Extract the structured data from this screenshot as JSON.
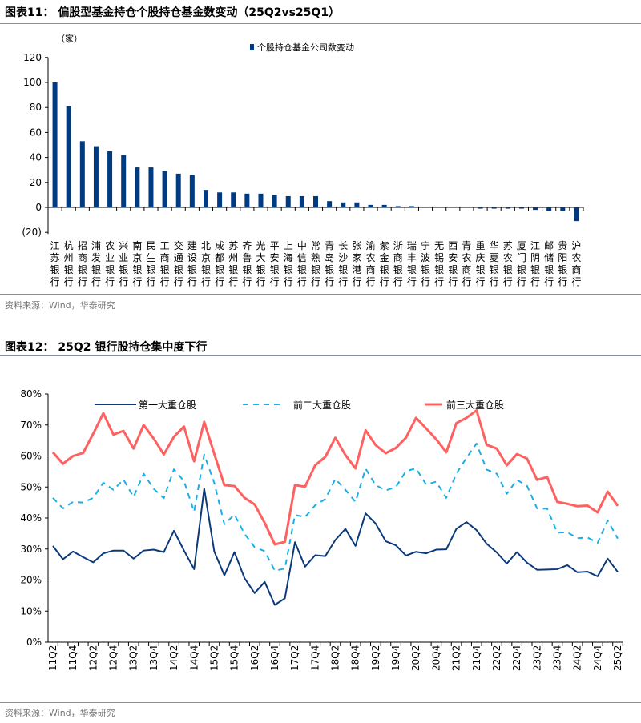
{
  "chart_data": [
    {
      "type": "bar",
      "title": "图表11： 偏股型基金持仓个股持仓基金数变动（25Q2vs25Q1）",
      "ylabel": "（家）",
      "ylim": [
        -20,
        120
      ],
      "yticks": [
        "(20)",
        "0",
        "20",
        "40",
        "60",
        "80",
        "100",
        "120"
      ],
      "legend": "top-center",
      "color": "#003A80",
      "categories": [
        "江苏银行",
        "杭州银行",
        "招商银行",
        "浦发银行",
        "农业银行",
        "兴业银行",
        "南京银行",
        "民生银行",
        "工商银行",
        "交通银行",
        "建设银行",
        "北京银行",
        "成都银行",
        "苏州银行",
        "齐鲁银行",
        "光大银行",
        "平安银行",
        "上海银行",
        "中信银行",
        "常熟银行",
        "青岛银行",
        "长沙银行",
        "张家港行",
        "渝农商行",
        "紫金银行",
        "浙商银行",
        "瑞丰银行",
        "宁波银行",
        "无锡银行",
        "西安银行",
        "青农商行",
        "重庆银行",
        "华夏银行",
        "苏农银行",
        "厦门银行",
        "江阴银行",
        "邮储银行",
        "贵阳银行",
        "沪农商行"
      ],
      "series": [
        {
          "name": "个股持仓基金公司数变动",
          "values": [
            100,
            81,
            53,
            49,
            45,
            42,
            32,
            32,
            29,
            27,
            26,
            14,
            12,
            12,
            11,
            11,
            10,
            9,
            9,
            9,
            5,
            4,
            4,
            2,
            2,
            1,
            1,
            0,
            0,
            0,
            0,
            -1,
            -1,
            -1,
            -1,
            -2,
            -3,
            -3,
            -11
          ]
        }
      ],
      "source": "资料来源：Wind，华泰研究"
    },
    {
      "type": "line",
      "title": "图表12： 25Q2 银行股持仓集中度下行",
      "ylim": [
        0,
        80
      ],
      "yticks": [
        "0%",
        "10%",
        "20%",
        "30%",
        "40%",
        "50%",
        "60%",
        "70%",
        "80%"
      ],
      "legend": "top",
      "x": [
        "11Q2",
        "11Q3",
        "11Q4",
        "12Q1",
        "12Q2",
        "12Q3",
        "12Q4",
        "13Q1",
        "13Q2",
        "13Q3",
        "13Q4",
        "14Q1",
        "14Q2",
        "14Q3",
        "14Q4",
        "15Q1",
        "15Q2",
        "15Q3",
        "15Q4",
        "16Q1",
        "16Q2",
        "16Q3",
        "16Q4",
        "17Q1",
        "17Q2",
        "17Q3",
        "17Q4",
        "18Q1",
        "18Q2",
        "18Q3",
        "18Q4",
        "19Q1",
        "19Q2",
        "19Q3",
        "19Q4",
        "20Q1",
        "20Q2",
        "20Q3",
        "20Q4",
        "21Q1",
        "21Q2",
        "21Q3",
        "21Q4",
        "22Q1",
        "22Q2",
        "22Q3",
        "22Q4",
        "23Q1",
        "23Q2",
        "23Q3",
        "23Q4",
        "24Q1",
        "24Q2",
        "24Q3",
        "24Q4",
        "25Q1",
        "25Q2"
      ],
      "xticks_shown": [
        "11Q2",
        "11Q4",
        "12Q2",
        "12Q4",
        "13Q2",
        "13Q4",
        "14Q2",
        "14Q4",
        "15Q2",
        "15Q4",
        "16Q2",
        "16Q4",
        "17Q2",
        "17Q4",
        "18Q2",
        "18Q4",
        "19Q2",
        "19Q4",
        "20Q2",
        "20Q4",
        "21Q2",
        "21Q4",
        "22Q2",
        "22Q4",
        "23Q2",
        "23Q4",
        "24Q2",
        "24Q4",
        "25Q2"
      ],
      "series": [
        {
          "name": "第一大重仓股",
          "color": "#0B3A7A",
          "style": "solid",
          "values": [
            31.0,
            26.7,
            29.2,
            27.4,
            25.7,
            28.6,
            29.5,
            29.5,
            26.9,
            29.5,
            29.8,
            29.0,
            35.9,
            29.5,
            23.5,
            49.5,
            29.2,
            21.5,
            29.0,
            20.6,
            15.8,
            19.4,
            12.0,
            14.1,
            32.2,
            24.3,
            28.0,
            27.7,
            32.9,
            36.5,
            31.0,
            41.5,
            38.2,
            32.5,
            31.2,
            27.9,
            29.1,
            28.6,
            29.8,
            29.9,
            36.5,
            38.7,
            36.1,
            31.7,
            28.9,
            25.3,
            29.0,
            25.6,
            23.3,
            23.4,
            23.5,
            24.8,
            22.5,
            22.7,
            21.2,
            26.9,
            22.6
          ]
        },
        {
          "name": "前二大重仓股",
          "color": "#1AADE8",
          "style": "dashed",
          "values": [
            46.5,
            43.1,
            45.2,
            45.0,
            46.5,
            51.4,
            49.1,
            52.4,
            46.8,
            54.3,
            49.4,
            46.4,
            55.7,
            51.9,
            42.0,
            60.5,
            51.3,
            38.0,
            41.1,
            34.9,
            30.6,
            29.3,
            23.0,
            23.7,
            41.0,
            40.3,
            44.1,
            46.1,
            52.6,
            49.1,
            45.2,
            55.9,
            50.6,
            48.9,
            50.0,
            55.1,
            56.0,
            50.8,
            51.7,
            46.5,
            54.3,
            59.4,
            64.0,
            55.6,
            54.3,
            47.8,
            52.3,
            50.4,
            43.1,
            43.0,
            35.3,
            35.4,
            33.5,
            33.7,
            32.0,
            39.2,
            33.4
          ]
        },
        {
          "name": "前三大重仓股",
          "color": "#FF6161",
          "style": "solid",
          "values": [
            61.2,
            57.5,
            60.0,
            61.0,
            67.2,
            73.8,
            66.9,
            68.1,
            62.4,
            70.0,
            65.6,
            60.5,
            66.2,
            69.5,
            58.3,
            71.0,
            60.7,
            50.6,
            50.3,
            46.5,
            44.4,
            38.4,
            31.5,
            32.3,
            50.6,
            50.1,
            57.0,
            59.7,
            65.9,
            60.3,
            56.0,
            68.3,
            63.5,
            60.9,
            62.6,
            65.9,
            72.3,
            68.9,
            65.4,
            61.2,
            70.6,
            72.3,
            74.7,
            63.6,
            62.4,
            57.0,
            60.6,
            59.2,
            52.3,
            53.2,
            45.2,
            44.6,
            43.8,
            44.0,
            41.8,
            48.5,
            43.9
          ]
        }
      ],
      "source": "资料来源：Wind，华泰研究"
    }
  ]
}
